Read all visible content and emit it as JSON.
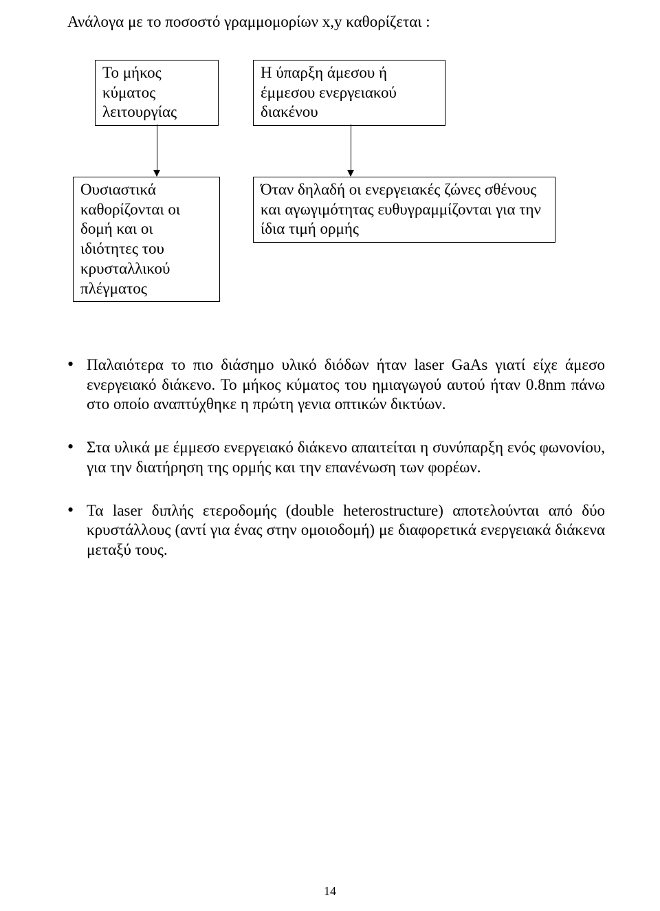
{
  "heading": "Ανάλογα με το ποσοστό γραμμομορίων x,y καθορίζεται :",
  "diagram": {
    "box_a": "Το μήκος κύματος λειτουργίας",
    "box_b": "Η ύπαρξη άμεσου ή έμμεσου ενεργειακού διακένου",
    "box_c": "Ουσιαστικά καθορίζονται οι δομή και οι ιδιότητες του κρυσταλλικού πλέγματος",
    "box_d": "Όταν δηλαδή οι ενεργειακές ζώνες σθένους και αγωγιμότητας ευθυγραμμίζονται για την ίδια τιμή ορμής"
  },
  "bullets": [
    "Παλαιότερα το πιο διάσημο υλικό διόδων ήταν laser GaAs γιατί είχε άμεσο ενεργειακό διάκενο. Το μήκος κύματος του ημιαγωγού αυτού ήταν 0.8nm πάνω στο οποίο αναπτύχθηκε η πρώτη γενια οπτικών δικτύων.",
    "Στα υλικά με έμμεσο ενεργειακό διάκενο απαιτείται η συνύπαρξη ενός φωνονίου, για την διατήρηση της ορμής και την επανένωση των φορέων.",
    "Τα laser διπλής ετεροδομής (double heterostructure) αποτελούνται από δύο κρυστάλλους (αντί για ένας στην ομοιοδομή) με διαφορετικά ενεργειακά διάκενα μεταξύ τους."
  ],
  "page_number": "14"
}
